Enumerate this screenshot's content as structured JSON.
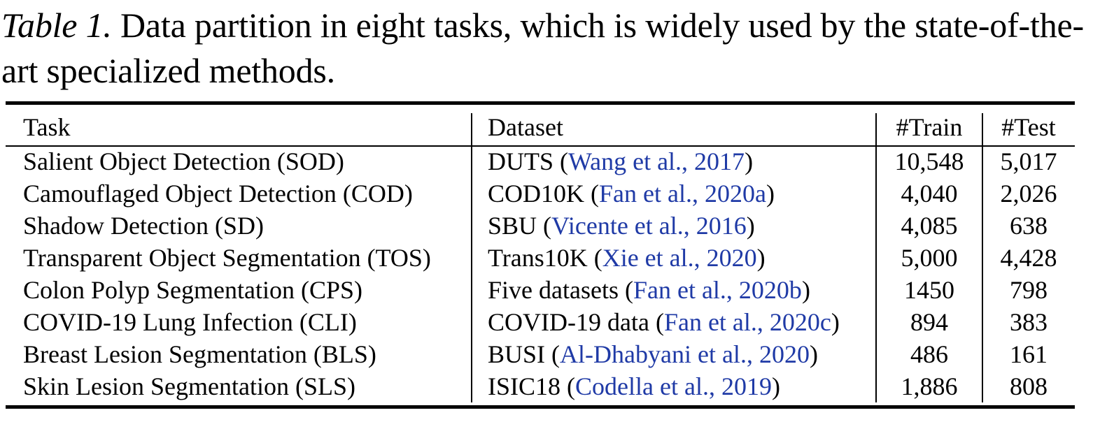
{
  "caption": {
    "label": "Table 1.",
    "text": " Data partition in eight tasks, which is widely used by the state-of-the-art specialized methods."
  },
  "colors": {
    "citation": "#1f3aa6",
    "text": "#000000"
  },
  "table": {
    "headers": {
      "task": "Task",
      "dataset": "Dataset",
      "train": "#Train",
      "test": "#Test"
    },
    "rows": [
      {
        "task": "Salient Object Detection (SOD)",
        "dataset": "DUTS",
        "cite": "Wang et al., 2017",
        "train": "10,548",
        "test": "5,017"
      },
      {
        "task": "Camouflaged Object Detection (COD)",
        "dataset": "COD10K",
        "cite": "Fan et al., 2020a",
        "train": "4,040",
        "test": "2,026"
      },
      {
        "task": "Shadow Detection (SD)",
        "dataset": "SBU",
        "cite": "Vicente et al., 2016",
        "train": "4,085",
        "test": "638"
      },
      {
        "task": "Transparent Object Segmentation (TOS)",
        "dataset": "Trans10K",
        "cite": "Xie et al., 2020",
        "train": "5,000",
        "test": "4,428"
      },
      {
        "task": "Colon Polyp Segmentation (CPS)",
        "dataset": "Five datasets",
        "cite": "Fan et al., 2020b",
        "train": "1450",
        "test": "798"
      },
      {
        "task": "COVID-19 Lung Infection (CLI)",
        "dataset": "COVID-19 data",
        "cite": "Fan et al., 2020c",
        "train": "894",
        "test": "383"
      },
      {
        "task": "Breast Lesion Segmentation (BLS)",
        "dataset": "BUSI",
        "cite": "Al-Dhabyani et al., 2020",
        "train": "486",
        "test": "161"
      },
      {
        "task": "Skin Lesion Segmentation (SLS)",
        "dataset": "ISIC18",
        "cite": "Codella et al., 2019",
        "train": "1,886",
        "test": "808"
      }
    ]
  }
}
